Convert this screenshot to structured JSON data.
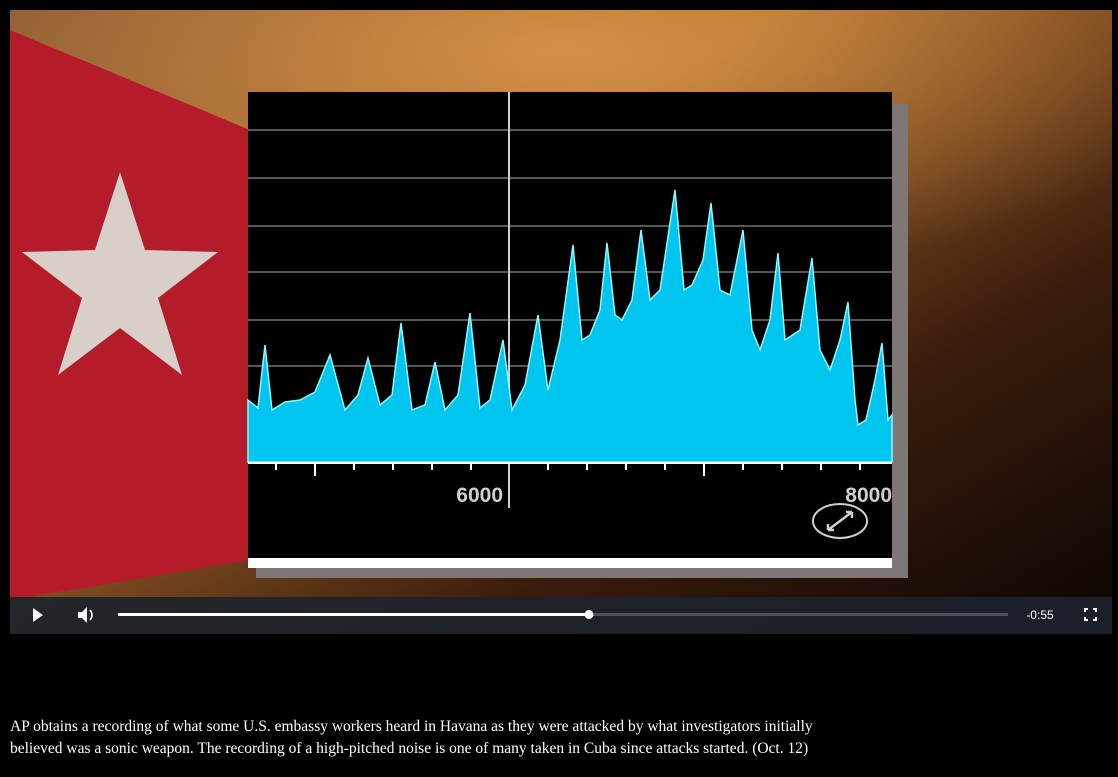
{
  "video": {
    "frame": {
      "axis_labels": [
        "6000",
        "8000"
      ]
    },
    "controls": {
      "time_remaining": "-0:55"
    }
  },
  "caption": {
    "lines": [
      "AP obtains a recording of what some U.S. embassy workers heard in Havana as they were attacked by what investigators initially",
      "believed was a sonic weapon. The recording of a high-pitched noise is one of many taken in Cuba since attacks started. (Oct. 12)"
    ]
  }
}
